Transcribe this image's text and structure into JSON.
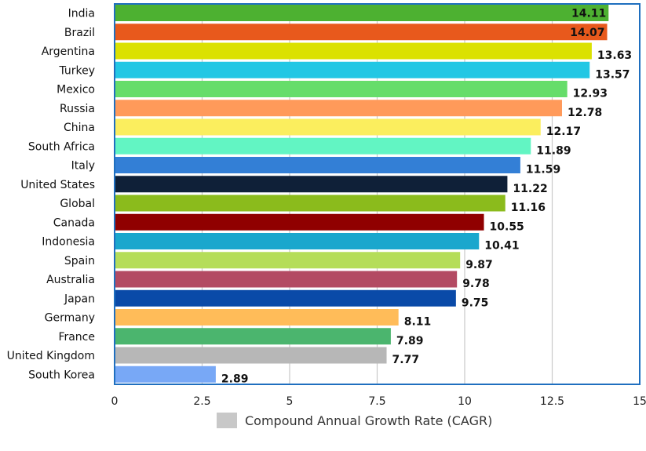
{
  "chart_data": {
    "type": "bar",
    "orientation": "horizontal",
    "categories": [
      "India",
      "Brazil",
      "Argentina",
      "Turkey",
      "Mexico",
      "Russia",
      "China",
      "South Africa",
      "Italy",
      "United States",
      "Global",
      "Canada",
      "Indonesia",
      "Spain",
      "Australia",
      "Japan",
      "Germany",
      "France",
      "United Kingdom",
      "South Korea"
    ],
    "values": [
      14.11,
      14.07,
      13.63,
      13.57,
      12.93,
      12.78,
      12.17,
      11.89,
      11.59,
      11.22,
      11.16,
      10.55,
      10.41,
      9.87,
      9.78,
      9.75,
      8.11,
      7.89,
      7.77,
      2.89
    ],
    "value_labels": [
      "14.11",
      "14.07",
      "13.63",
      "13.57",
      "12.93",
      "12.78",
      "12.17",
      "11.89",
      "11.59",
      "11.22",
      "11.16",
      "10.55",
      "10.41",
      "9.87",
      "9.78",
      "9.75",
      "8.11",
      "7.89",
      "7.77",
      "2.89"
    ],
    "colors": [
      "#4db131",
      "#e8591c",
      "#dbe100",
      "#22c7e4",
      "#66dd6a",
      "#ff9a5a",
      "#fbee5e",
      "#62f5c3",
      "#337fd6",
      "#0f2038",
      "#8bbb1c",
      "#900000",
      "#1aa7cd",
      "#b5dd59",
      "#b34a63",
      "#0a4aa8",
      "#ffbc59",
      "#4bb56e",
      "#b7b7b7",
      "#78a8f6"
    ],
    "xlim": [
      0,
      15
    ],
    "xticks": [
      "0",
      "2.5",
      "5",
      "7.5",
      "10",
      "12.5",
      "15"
    ],
    "xtick_values": [
      0,
      2.5,
      5,
      7.5,
      10,
      12.5,
      15
    ],
    "grid": true,
    "legend": {
      "label": "Compound Annual Growth Rate (CAGR)",
      "color": "#c8c8c8",
      "placement": "bottom-center"
    },
    "plot_border_color": "#1f6fbf"
  }
}
